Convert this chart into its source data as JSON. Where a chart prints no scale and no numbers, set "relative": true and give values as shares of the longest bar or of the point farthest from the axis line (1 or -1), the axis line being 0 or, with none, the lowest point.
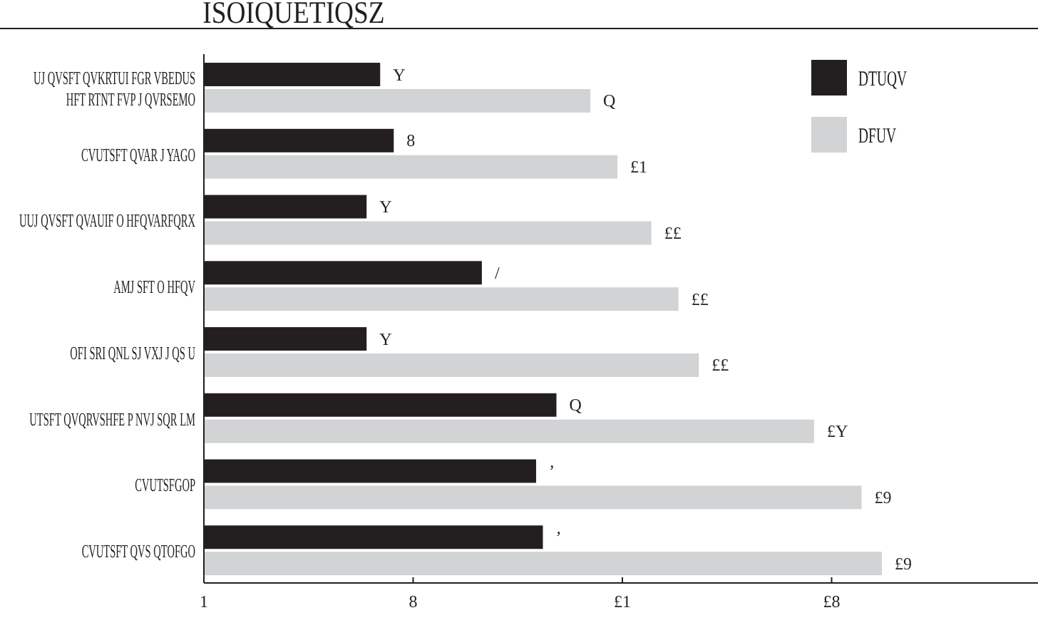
{
  "chart_data": {
    "type": "bar",
    "orientation": "horizontal",
    "relative": true,
    "title": "ISOIQUETIQSZ",
    "categories": [
      "UJ QVSFT QVKRTUI FGR VBEDUS\nHFT RTNT FVP J QVRSEMO",
      "CVUTSFT QVAR J YAGO",
      "UUJ QVSFT QVAUIF O HFQVARFQRX",
      "AMJ SFT O HFQV",
      "OFI SRI QNL SJ VXJ J QS U",
      "UTSFT QVQRVSHFE P NVJ SQR LM",
      "CVUTSFGOP",
      "CVUTSFT QVS QTOFGO"
    ],
    "series": [
      {
        "name": "DTUQV",
        "color": "#231f20",
        "values": [
          0.26,
          0.28,
          0.24,
          0.41,
          0.24,
          0.52,
          0.49,
          0.5
        ]
      },
      {
        "name": "DFUV",
        "color": "#d1d3d4",
        "values": [
          0.57,
          0.61,
          0.66,
          0.7,
          0.73,
          0.9,
          0.97,
          1
        ]
      }
    ],
    "annotations": [
      {
        "text": "Y",
        "x": 0.26,
        "y": "UJ QVSFT QVKRTUI FGR VBEDUS\nHFT RTNT FVP J QVRSEMO"
      },
      {
        "text": "Q",
        "x": 0.57,
        "y": "UJ QVSFT QVKRTUI FGR VBEDUS\nHFT RTNT FVP J QVRSEMO"
      },
      {
        "text": "8",
        "x": 0.28,
        "y": "CVUTSFT QVAR J YAGO"
      },
      {
        "text": "£1",
        "x": 0.61,
        "y": "CVUTSFT QVAR J YAGO"
      },
      {
        "text": "Y",
        "x": 0.24,
        "y": "UUJ QVSFT QVAUIF O HFQVARFQRX"
      },
      {
        "text": "££",
        "x": 0.66,
        "y": "UUJ QVSFT QVAUIF O HFQVARFQRX"
      },
      {
        "text": "/",
        "x": 0.41,
        "y": "AMJ SFT O HFQV"
      },
      {
        "text": "££",
        "x": 0.7,
        "y": "AMJ SFT O HFQV"
      },
      {
        "text": "Y",
        "x": 0.24,
        "y": "OFI SRI QNL SJ VXJ J QS U"
      },
      {
        "text": "££",
        "x": 0.73,
        "y": "OFI SRI QNL SJ VXJ J QS U"
      },
      {
        "text": "Q",
        "x": 0.52,
        "y": "UTSFT QVQRVSHFE P NVJ SQR LM"
      },
      {
        "text": "£Y",
        "x": 0.9,
        "y": "UTSFT QVQRVSHFE P NVJ SQR LM"
      },
      {
        "text": "ʼ",
        "x": 0.49,
        "y": "CVUTSFGOP"
      },
      {
        "text": "£9",
        "x": 0.97,
        "y": "CVUTSFGOP"
      },
      {
        "text": "ʼ",
        "x": 0.5,
        "y": "CVUTSFT QVS QTOFGO"
      },
      {
        "text": "£9",
        "x": 1,
        "y": "CVUTSFT QVS QTOFGO"
      },
      "1",
      "8",
      "£1",
      "£8"
    ],
    "legend": "top right"
  }
}
